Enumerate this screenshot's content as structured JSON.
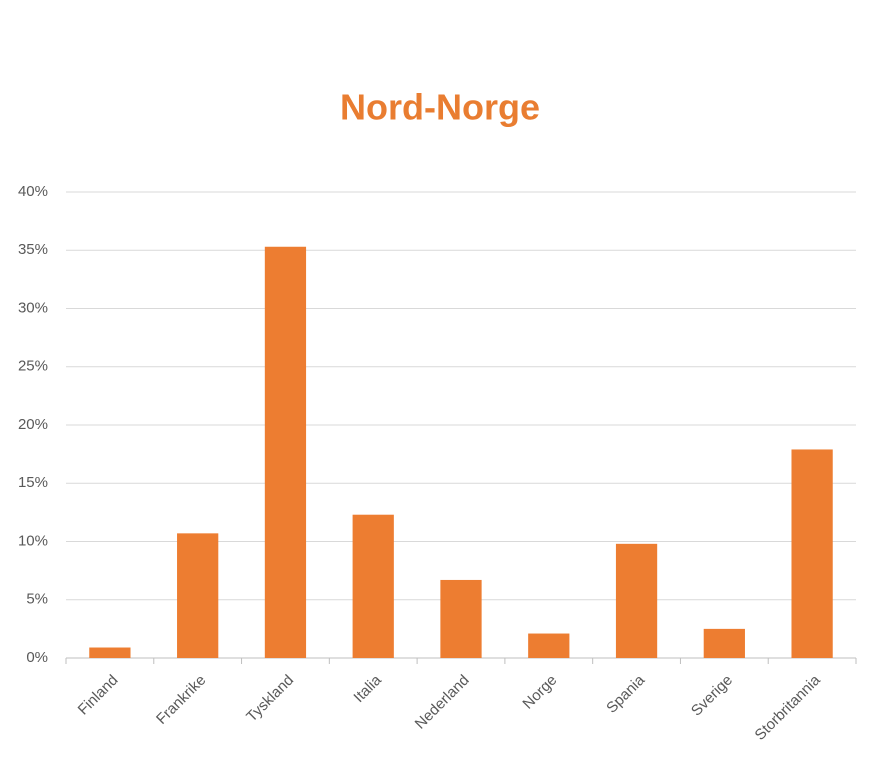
{
  "chart_data": {
    "type": "bar",
    "title": "Nord-Norge",
    "categories": [
      "Finland",
      "Frankrike",
      "Tyskland",
      "Italia",
      "Nederland",
      "Norge",
      "Spania",
      "Sverige",
      "Storbritannia"
    ],
    "values": [
      0.9,
      10.7,
      35.3,
      12.3,
      6.7,
      2.1,
      9.8,
      2.5,
      17.9
    ],
    "color": "#ed7d31",
    "ylim": [
      0,
      40
    ],
    "yticks": [
      {
        "value": 0,
        "label": "0%"
      },
      {
        "value": 5,
        "label": "5%"
      },
      {
        "value": 10,
        "label": "10%"
      },
      {
        "value": 15,
        "label": "15%"
      },
      {
        "value": 20,
        "label": "20%"
      },
      {
        "value": 25,
        "label": "25%"
      },
      {
        "value": 30,
        "label": "30%"
      },
      {
        "value": 35,
        "label": "35%"
      },
      {
        "value": 40,
        "label": "40%"
      }
    ],
    "grid": true
  }
}
